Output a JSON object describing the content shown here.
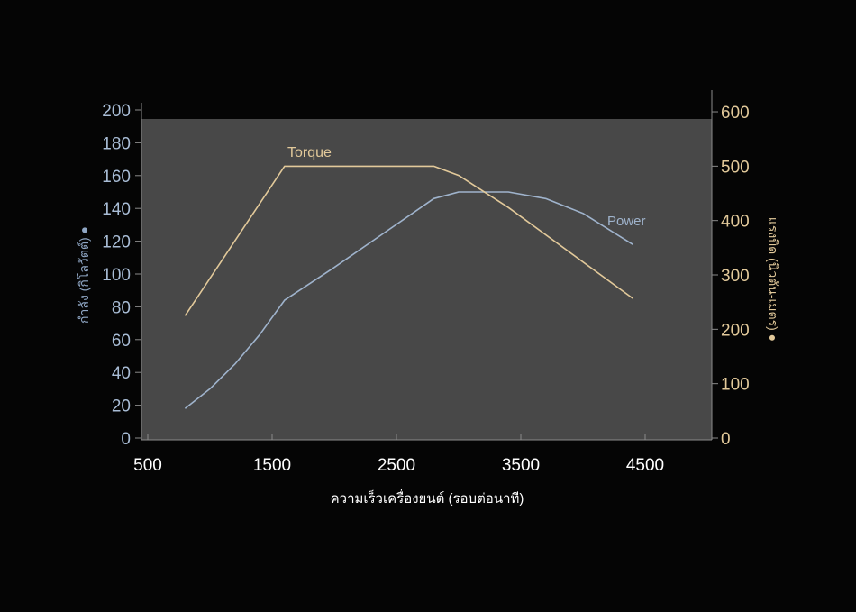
{
  "chart_data": {
    "type": "line",
    "xlabel": "ความเร็วเครื่องยนต์ (รอบต่อนาที)",
    "ylabel_left": "กำลัง (กิโลวัตต์) ●",
    "ylabel_right": "แรงบิด (นิวตัน-เมตร) ●",
    "xlim": [
      450,
      5040
    ],
    "ylim_left": [
      0,
      200
    ],
    "ylim_right": [
      0,
      600
    ],
    "x_ticks": [
      500,
      1500,
      2500,
      3500,
      4500
    ],
    "y_ticks_left": [
      0,
      20,
      40,
      60,
      80,
      100,
      120,
      140,
      160,
      180,
      200
    ],
    "y_ticks_right": [
      0,
      100,
      200,
      300,
      400,
      500,
      600
    ],
    "grid": false,
    "series": [
      {
        "name": "Power",
        "axis": "left",
        "color": "#9fb3cc",
        "x": [
          800,
          1000,
          1200,
          1400,
          1600,
          2000,
          2400,
          2800,
          3000,
          3400,
          3700,
          4000,
          4400
        ],
        "y": [
          18,
          30,
          45,
          63,
          84,
          104,
          125,
          146,
          150,
          150,
          146,
          137,
          118
        ]
      },
      {
        "name": "Torque",
        "axis": "right",
        "color": "#e2c99a",
        "x": [
          800,
          1600,
          2800,
          3000,
          3400,
          4400
        ],
        "y": [
          225,
          500,
          500,
          483,
          424,
          257
        ]
      }
    ],
    "colors": {
      "background": "#050505",
      "plot_area": "#484848",
      "axis": "#8a8a8a",
      "tick_left": "#a9bdd6",
      "tick_right": "#e2c99a",
      "tick_x": "#ffffff"
    }
  }
}
